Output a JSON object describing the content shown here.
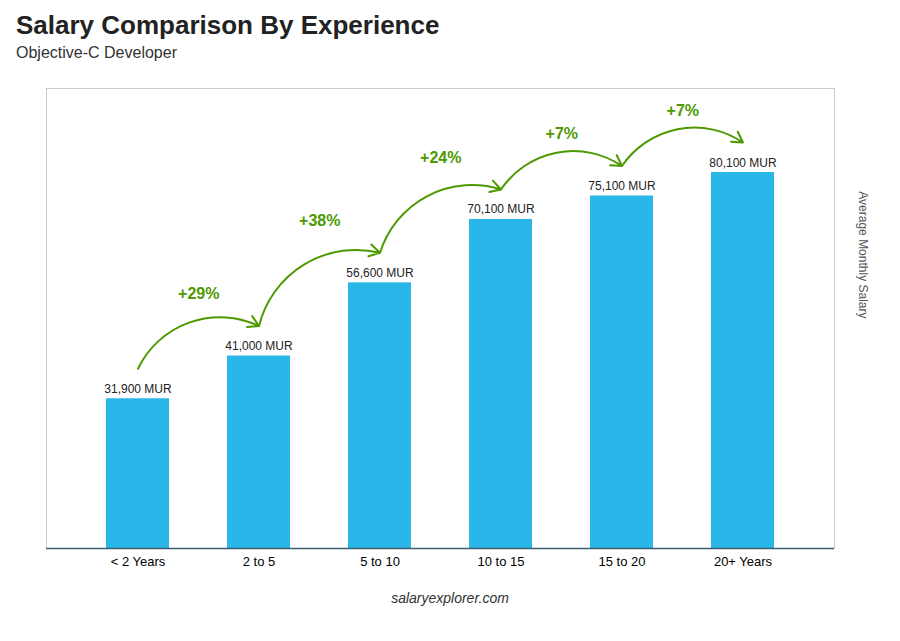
{
  "chart_data": {
    "type": "bar",
    "title": "Salary Comparison By Experience",
    "subtitle": "Objective-C Developer",
    "categories": [
      "< 2 Years",
      "2 to 5",
      "5 to 10",
      "10 to 15",
      "15 to 20",
      "20+ Years"
    ],
    "values": [
      31900,
      41000,
      56600,
      70100,
      75100,
      80100
    ],
    "value_labels": [
      "31,900 MUR",
      "41,000 MUR",
      "56,600 MUR",
      "70,100 MUR",
      "75,100 MUR",
      "80,100 MUR"
    ],
    "data_labels": true,
    "annotations": [
      "+29%",
      "+38%",
      "+24%",
      "+7%",
      "+7%"
    ],
    "ylabel": "Average Monthly Salary",
    "caption": "salaryexplorer.com",
    "color": "#29b6e8",
    "ylim": [
      0,
      98000
    ],
    "grid": false,
    "tick_labels": "x"
  }
}
